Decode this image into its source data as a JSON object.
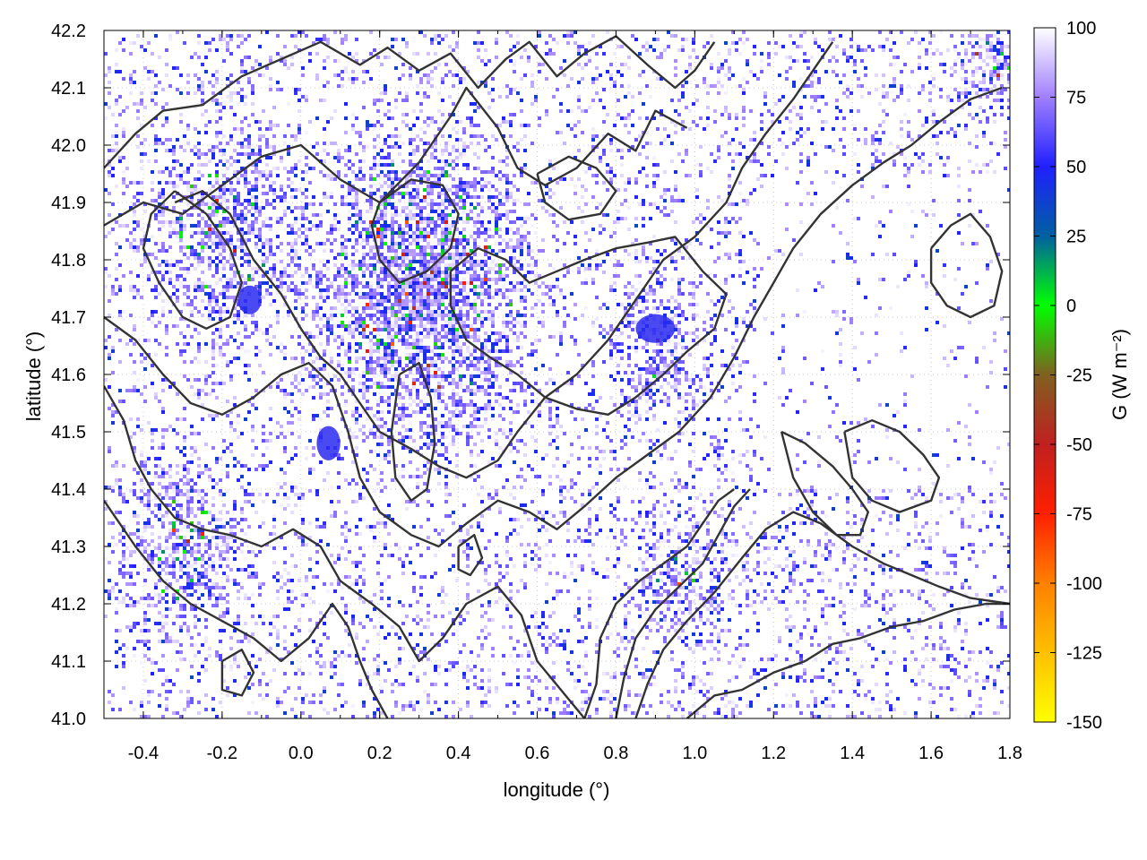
{
  "chart_data": {
    "type": "heatmap",
    "xlabel": "longitude (°)",
    "ylabel": "latitude (°)",
    "colorbar_label": "G (W m⁻²)",
    "xlim": [
      -0.5,
      1.8
    ],
    "ylim": [
      41.0,
      42.2
    ],
    "x_ticks": [
      "-0.4",
      "-0.2",
      "0.0",
      "0.2",
      "0.4",
      "0.6",
      "0.8",
      "1.0",
      "1.2",
      "1.4",
      "1.6",
      "1.8"
    ],
    "y_ticks": [
      "41.0",
      "41.1",
      "41.2",
      "41.3",
      "41.4",
      "41.5",
      "41.6",
      "41.7",
      "41.8",
      "41.9",
      "42.0",
      "42.1",
      "42.2"
    ],
    "colorbar_range": [
      -150,
      100
    ],
    "colorbar_ticks": [
      "100",
      "75",
      "50",
      "25",
      "0",
      "-25",
      "-50",
      "-75",
      "-100",
      "-125",
      "-150"
    ],
    "grid": true,
    "colormap": [
      {
        "value": -150,
        "color": "#ffff00"
      },
      {
        "value": -125,
        "color": "#ffc000"
      },
      {
        "value": -100,
        "color": "#ff8000"
      },
      {
        "value": -75,
        "color": "#ff2000"
      },
      {
        "value": -50,
        "color": "#c02020"
      },
      {
        "value": -25,
        "color": "#806020"
      },
      {
        "value": 0,
        "color": "#00ff00"
      },
      {
        "value": 25,
        "color": "#0060a0"
      },
      {
        "value": 50,
        "color": "#2020ff"
      },
      {
        "value": 75,
        "color": "#a080ff"
      },
      {
        "value": 100,
        "color": "#ffffff"
      }
    ],
    "contour_lines": [
      [
        [
          -0.5,
          41.96
        ],
        [
          -0.42,
          42.02
        ],
        [
          -0.35,
          42.06
        ],
        [
          -0.25,
          42.07
        ],
        [
          -0.15,
          42.12
        ],
        [
          -0.05,
          42.15
        ],
        [
          0.05,
          42.18
        ],
        [
          0.15,
          42.14
        ],
        [
          0.22,
          42.17
        ],
        [
          0.3,
          42.13
        ],
        [
          0.38,
          42.16
        ],
        [
          0.45,
          42.1
        ],
        [
          0.52,
          42.15
        ],
        [
          0.58,
          42.18
        ],
        [
          0.65,
          42.12
        ],
        [
          0.72,
          42.16
        ],
        [
          0.8,
          42.19
        ],
        [
          0.88,
          42.14
        ],
        [
          0.95,
          42.1
        ],
        [
          1.0,
          42.13
        ],
        [
          1.05,
          42.18
        ]
      ],
      [
        [
          -0.5,
          41.86
        ],
        [
          -0.4,
          41.9
        ],
        [
          -0.3,
          41.88
        ],
        [
          -0.2,
          41.93
        ],
        [
          -0.1,
          41.98
        ],
        [
          0.0,
          42.0
        ],
        [
          0.1,
          41.94
        ],
        [
          0.2,
          41.9
        ],
        [
          0.3,
          41.97
        ],
        [
          0.38,
          42.05
        ],
        [
          0.42,
          42.1
        ],
        [
          0.5,
          42.03
        ],
        [
          0.55,
          41.96
        ],
        [
          0.62,
          41.93
        ],
        [
          0.7,
          41.96
        ],
        [
          0.78,
          42.02
        ],
        [
          0.85,
          41.99
        ],
        [
          0.9,
          42.06
        ],
        [
          0.98,
          42.03
        ]
      ],
      [
        [
          -0.32,
          41.9
        ],
        [
          -0.25,
          41.92
        ],
        [
          -0.18,
          41.88
        ],
        [
          -0.12,
          41.8
        ],
        [
          -0.05,
          41.74
        ],
        [
          0.0,
          41.68
        ],
        [
          0.05,
          41.63
        ],
        [
          0.1,
          41.6
        ],
        [
          0.15,
          41.55
        ],
        [
          0.2,
          41.5
        ],
        [
          0.28,
          41.47
        ],
        [
          0.35,
          41.44
        ],
        [
          0.42,
          41.42
        ],
        [
          0.5,
          41.45
        ],
        [
          0.55,
          41.5
        ],
        [
          0.62,
          41.56
        ],
        [
          0.7,
          41.6
        ],
        [
          0.78,
          41.66
        ],
        [
          0.85,
          41.73
        ],
        [
          0.92,
          41.8
        ],
        [
          1.0,
          41.84
        ],
        [
          1.08,
          41.9
        ],
        [
          1.12,
          41.96
        ],
        [
          1.18,
          42.02
        ],
        [
          1.25,
          42.08
        ],
        [
          1.3,
          42.13
        ],
        [
          1.35,
          42.18
        ]
      ],
      [
        [
          -0.5,
          41.7
        ],
        [
          -0.42,
          41.66
        ],
        [
          -0.35,
          41.6
        ],
        [
          -0.28,
          41.55
        ],
        [
          -0.2,
          41.53
        ],
        [
          -0.12,
          41.56
        ],
        [
          -0.05,
          41.6
        ],
        [
          0.02,
          41.62
        ],
        [
          0.08,
          41.58
        ],
        [
          0.12,
          41.5
        ],
        [
          0.15,
          41.42
        ],
        [
          0.2,
          41.36
        ],
        [
          0.28,
          41.32
        ],
        [
          0.35,
          41.3
        ],
        [
          0.42,
          41.34
        ],
        [
          0.5,
          41.38
        ],
        [
          0.58,
          41.36
        ],
        [
          0.65,
          41.33
        ],
        [
          0.72,
          41.37
        ],
        [
          0.8,
          41.42
        ],
        [
          0.88,
          41.46
        ],
        [
          0.96,
          41.5
        ],
        [
          1.04,
          41.56
        ],
        [
          1.1,
          41.63
        ],
        [
          1.15,
          41.7
        ],
        [
          1.2,
          41.76
        ],
        [
          1.25,
          41.82
        ],
        [
          1.32,
          41.88
        ],
        [
          1.4,
          41.93
        ],
        [
          1.48,
          41.97
        ],
        [
          1.55,
          42.0
        ],
        [
          1.62,
          42.04
        ],
        [
          1.7,
          42.08
        ],
        [
          1.78,
          42.1
        ]
      ],
      [
        [
          -0.5,
          41.58
        ],
        [
          -0.45,
          41.52
        ],
        [
          -0.42,
          41.45
        ],
        [
          -0.38,
          41.4
        ],
        [
          -0.32,
          41.35
        ],
        [
          -0.25,
          41.33
        ],
        [
          -0.18,
          41.32
        ],
        [
          -0.1,
          41.3
        ],
        [
          -0.02,
          41.33
        ],
        [
          0.05,
          41.3
        ],
        [
          0.1,
          41.24
        ],
        [
          0.18,
          41.2
        ],
        [
          0.25,
          41.16
        ],
        [
          0.3,
          41.1
        ],
        [
          0.36,
          41.14
        ],
        [
          0.42,
          41.2
        ],
        [
          0.5,
          41.23
        ],
        [
          0.56,
          41.18
        ],
        [
          0.6,
          41.1
        ],
        [
          0.66,
          41.05
        ],
        [
          0.72,
          41.0
        ]
      ],
      [
        [
          -0.5,
          41.38
        ],
        [
          -0.42,
          41.3
        ],
        [
          -0.35,
          41.24
        ],
        [
          -0.28,
          41.2
        ],
        [
          -0.2,
          41.17
        ],
        [
          -0.12,
          41.14
        ],
        [
          -0.05,
          41.1
        ],
        [
          0.02,
          41.14
        ],
        [
          0.08,
          41.2
        ],
        [
          0.12,
          41.16
        ],
        [
          0.15,
          41.1
        ],
        [
          0.18,
          41.05
        ],
        [
          0.22,
          41.0
        ]
      ],
      [
        [
          0.85,
          41.0
        ],
        [
          0.88,
          41.06
        ],
        [
          0.92,
          41.12
        ],
        [
          0.98,
          41.17
        ],
        [
          1.05,
          41.22
        ],
        [
          1.12,
          41.28
        ],
        [
          1.18,
          41.33
        ],
        [
          1.25,
          41.36
        ],
        [
          1.32,
          41.34
        ],
        [
          1.4,
          41.3
        ],
        [
          1.48,
          41.27
        ],
        [
          1.55,
          41.25
        ],
        [
          1.62,
          41.23
        ],
        [
          1.7,
          41.21
        ],
        [
          1.8,
          41.2
        ]
      ],
      [
        [
          0.98,
          41.0
        ],
        [
          1.05,
          41.04
        ],
        [
          1.12,
          41.05
        ],
        [
          1.2,
          41.08
        ],
        [
          1.28,
          41.1
        ],
        [
          1.35,
          41.13
        ],
        [
          1.42,
          41.14
        ],
        [
          1.5,
          41.16
        ],
        [
          1.58,
          41.17
        ],
        [
          1.66,
          41.19
        ],
        [
          1.74,
          41.2
        ],
        [
          1.8,
          41.2
        ]
      ],
      [
        [
          0.72,
          41.0
        ],
        [
          0.75,
          41.06
        ],
        [
          0.76,
          41.14
        ],
        [
          0.8,
          41.2
        ],
        [
          0.86,
          41.24
        ],
        [
          0.92,
          41.27
        ],
        [
          0.98,
          41.3
        ],
        [
          1.02,
          41.34
        ],
        [
          1.06,
          41.38
        ],
        [
          1.1,
          41.4
        ]
      ],
      [
        [
          0.8,
          41.0
        ],
        [
          0.82,
          41.07
        ],
        [
          0.85,
          41.14
        ],
        [
          0.9,
          41.19
        ],
        [
          0.96,
          41.23
        ],
        [
          1.02,
          41.27
        ],
        [
          1.06,
          41.32
        ],
        [
          1.1,
          41.37
        ],
        [
          1.14,
          41.4
        ]
      ],
      [
        [
          0.38,
          41.78
        ],
        [
          0.45,
          41.82
        ],
        [
          0.52,
          41.8
        ],
        [
          0.58,
          41.76
        ],
        [
          0.65,
          41.78
        ],
        [
          0.72,
          41.8
        ],
        [
          0.8,
          41.82
        ],
        [
          0.88,
          41.83
        ],
        [
          0.95,
          41.84
        ],
        [
          1.02,
          41.78
        ],
        [
          1.08,
          41.74
        ],
        [
          1.05,
          41.68
        ],
        [
          0.98,
          41.64
        ],
        [
          0.92,
          41.6
        ],
        [
          0.85,
          41.56
        ],
        [
          0.78,
          41.53
        ],
        [
          0.7,
          41.54
        ],
        [
          0.62,
          41.56
        ],
        [
          0.55,
          41.6
        ],
        [
          0.48,
          41.63
        ],
        [
          0.42,
          41.66
        ],
        [
          0.38,
          41.72
        ],
        [
          0.38,
          41.78
        ]
      ],
      [
        [
          -0.32,
          41.92
        ],
        [
          -0.38,
          41.88
        ],
        [
          -0.4,
          41.82
        ],
        [
          -0.36,
          41.76
        ],
        [
          -0.3,
          41.7
        ],
        [
          -0.24,
          41.68
        ],
        [
          -0.18,
          41.7
        ],
        [
          -0.15,
          41.76
        ],
        [
          -0.18,
          41.82
        ],
        [
          -0.24,
          41.88
        ],
        [
          -0.32,
          41.92
        ]
      ],
      [
        [
          0.2,
          41.9
        ],
        [
          0.28,
          41.94
        ],
        [
          0.36,
          41.93
        ],
        [
          0.4,
          41.88
        ],
        [
          0.38,
          41.82
        ],
        [
          0.32,
          41.78
        ],
        [
          0.25,
          41.76
        ],
        [
          0.2,
          41.8
        ],
        [
          0.18,
          41.86
        ],
        [
          0.2,
          41.9
        ]
      ],
      [
        [
          1.38,
          41.5
        ],
        [
          1.45,
          41.52
        ],
        [
          1.52,
          41.5
        ],
        [
          1.58,
          41.46
        ],
        [
          1.62,
          41.42
        ],
        [
          1.6,
          41.38
        ],
        [
          1.52,
          41.36
        ],
        [
          1.45,
          41.38
        ],
        [
          1.4,
          41.42
        ],
        [
          1.38,
          41.5
        ]
      ],
      [
        [
          0.6,
          41.95
        ],
        [
          0.68,
          41.98
        ],
        [
          0.75,
          41.96
        ],
        [
          0.8,
          41.92
        ],
        [
          0.76,
          41.88
        ],
        [
          0.68,
          41.87
        ],
        [
          0.62,
          41.9
        ],
        [
          0.6,
          41.95
        ]
      ],
      [
        [
          1.6,
          41.82
        ],
        [
          1.65,
          41.86
        ],
        [
          1.7,
          41.88
        ],
        [
          1.75,
          41.84
        ],
        [
          1.78,
          41.78
        ],
        [
          1.76,
          41.72
        ],
        [
          1.7,
          41.7
        ],
        [
          1.64,
          41.72
        ],
        [
          1.6,
          41.76
        ],
        [
          1.6,
          41.82
        ]
      ],
      [
        [
          0.25,
          41.6
        ],
        [
          0.3,
          41.62
        ],
        [
          0.33,
          41.56
        ],
        [
          0.34,
          41.48
        ],
        [
          0.32,
          41.4
        ],
        [
          0.28,
          41.38
        ],
        [
          0.24,
          41.42
        ],
        [
          0.23,
          41.5
        ],
        [
          0.25,
          41.6
        ]
      ],
      [
        [
          1.22,
          41.5
        ],
        [
          1.28,
          41.48
        ],
        [
          1.35,
          41.44
        ],
        [
          1.4,
          41.4
        ],
        [
          1.44,
          41.36
        ],
        [
          1.42,
          41.32
        ],
        [
          1.36,
          41.32
        ],
        [
          1.3,
          41.36
        ],
        [
          1.25,
          41.42
        ],
        [
          1.22,
          41.5
        ]
      ],
      [
        [
          -0.2,
          41.1
        ],
        [
          -0.15,
          41.12
        ],
        [
          -0.12,
          41.08
        ],
        [
          -0.15,
          41.04
        ],
        [
          -0.2,
          41.05
        ],
        [
          -0.2,
          41.1
        ]
      ],
      [
        [
          0.4,
          41.3
        ],
        [
          0.44,
          41.32
        ],
        [
          0.46,
          41.28
        ],
        [
          0.43,
          41.25
        ],
        [
          0.4,
          41.26
        ],
        [
          0.4,
          41.3
        ]
      ]
    ]
  }
}
